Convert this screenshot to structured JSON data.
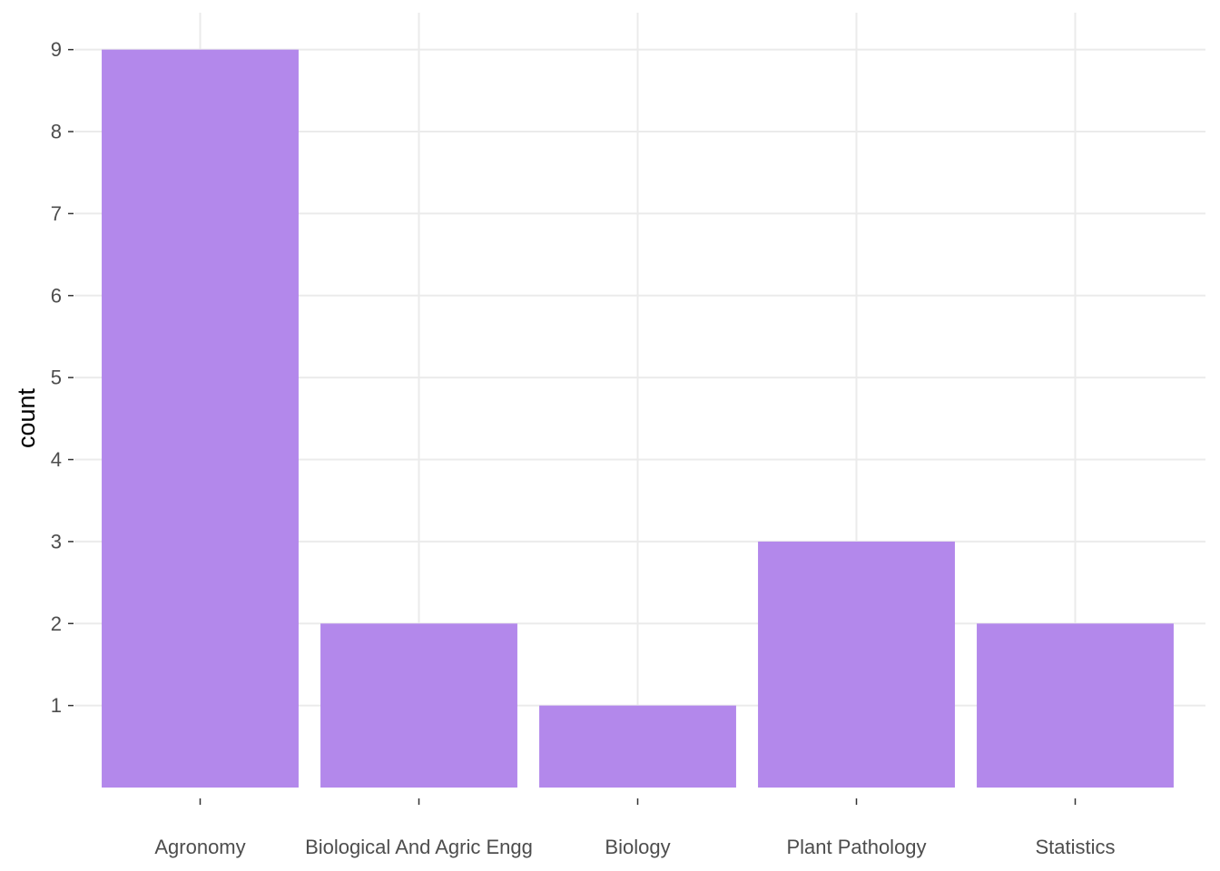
{
  "chart_data": {
    "type": "bar",
    "categories": [
      "Agronomy",
      "Biological And Agric Engg",
      "Biology",
      "Plant Pathology",
      "Statistics"
    ],
    "values": [
      9,
      2,
      1,
      3,
      2
    ],
    "title": "",
    "xlabel": "",
    "ylabel": "count",
    "ylim": [
      0,
      9.45
    ],
    "yticks": [
      1,
      2,
      3,
      4,
      5,
      6,
      7,
      8,
      9
    ],
    "grid": true,
    "bar_color": "#b388eb",
    "grid_color": "#ebebeb"
  }
}
